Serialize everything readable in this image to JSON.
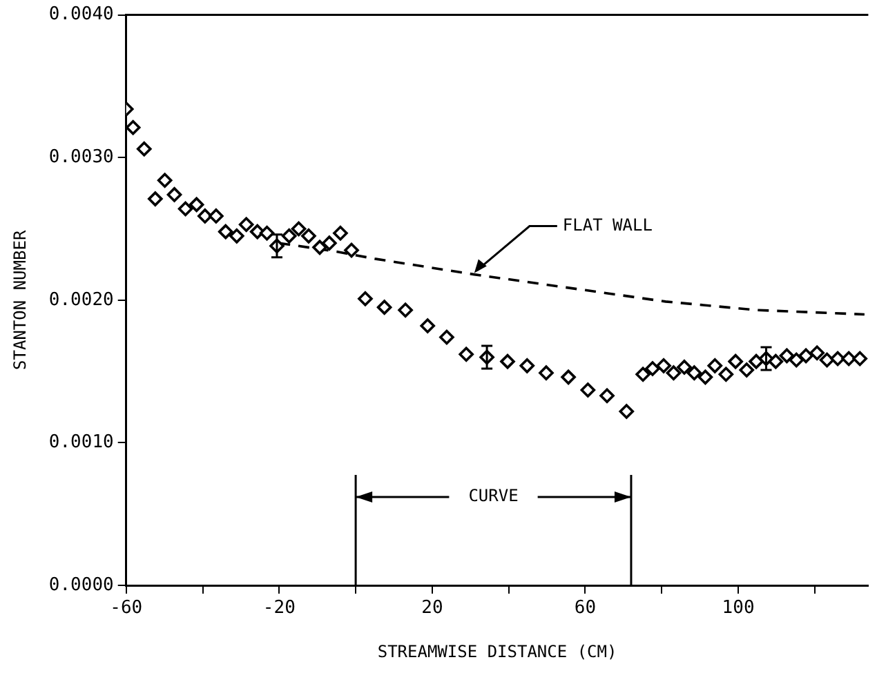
{
  "chart_data": {
    "type": "scatter",
    "xlabel": "STREAMWISE DISTANCE (CM)",
    "ylabel": "STANTON NUMBER",
    "xlim": [
      -60,
      134
    ],
    "ylim": [
      0,
      0.004
    ],
    "xticks": [
      -60,
      {
        "value": -40,
        "label": null
      },
      -20,
      {
        "value": 0,
        "label": null
      },
      20,
      {
        "value": 40,
        "label": null
      },
      60,
      {
        "value": 80,
        "label": null
      },
      100,
      {
        "value": 120,
        "label": null
      }
    ],
    "yticks": [
      {
        "value": 0,
        "label": "0.0000"
      },
      {
        "value": 0.001,
        "label": "0.0010"
      },
      {
        "value": 0.002,
        "label": "0.0020"
      },
      {
        "value": 0.003,
        "label": "0.0030"
      },
      {
        "value": 0.004,
        "label": "0.0040"
      }
    ],
    "grid": false,
    "legend": false,
    "series": [
      {
        "color": "#000000",
        "marker": "diamond",
        "x": [
          -60,
          -58.2,
          -55.3,
          -52.4,
          -49.9,
          -47.4,
          -44.5,
          -41.6,
          -39.4,
          -36.5,
          -34.0,
          -31.1,
          -28.6,
          -25.7,
          -23.2,
          -20.6,
          -17.4,
          -14.9,
          -12.3,
          -9.4,
          -6.9,
          -4.0,
          -1.1,
          2.5,
          7.5,
          13.0,
          18.8,
          23.8,
          28.9,
          34.3,
          39.7,
          44.8,
          49.8,
          55.6,
          60.7,
          65.7,
          70.8,
          75.1,
          77.6,
          80.5,
          83.1,
          85.9,
          88.5,
          91.4,
          93.9,
          96.8,
          99.3,
          102.2,
          104.7,
          107.3,
          109.8,
          112.7,
          115.2,
          117.7,
          120.6,
          123.2,
          126.0,
          128.9,
          131.8
        ],
        "values": [
          0.00334,
          0.00321,
          0.00306,
          0.00271,
          0.00284,
          0.00274,
          0.00264,
          0.00267,
          0.00259,
          0.00259,
          0.00248,
          0.00245,
          0.00253,
          0.00248,
          0.00247,
          0.00238,
          0.00245,
          0.0025,
          0.00245,
          0.00237,
          0.0024,
          0.00247,
          0.00235,
          0.00201,
          0.00195,
          0.00193,
          0.00182,
          0.00174,
          0.00162,
          0.0016,
          0.00157,
          0.00154,
          0.00149,
          0.00146,
          0.00137,
          0.00133,
          0.00122,
          0.00148,
          0.00152,
          0.00154,
          0.00149,
          0.00153,
          0.00149,
          0.00146,
          0.00154,
          0.00148,
          0.00157,
          0.00151,
          0.00157,
          0.00159,
          0.00157,
          0.00161,
          0.00158,
          0.00161,
          0.00163,
          0.00158,
          0.00159,
          0.00159,
          0.00159
        ],
        "errors": [
          null,
          null,
          null,
          null,
          null,
          null,
          null,
          null,
          null,
          null,
          null,
          null,
          null,
          null,
          null,
          8e-05,
          null,
          null,
          null,
          null,
          null,
          null,
          null,
          null,
          null,
          null,
          null,
          null,
          null,
          8e-05,
          null,
          null,
          null,
          null,
          null,
          null,
          null,
          null,
          null,
          null,
          null,
          null,
          null,
          null,
          null,
          null,
          null,
          null,
          null,
          8e-05,
          null,
          null,
          null,
          null,
          null,
          null,
          null,
          null,
          null
        ]
      },
      {
        "type": "line",
        "color": "#000000",
        "marker": "none",
        "line_style": "dashed",
        "x": [
          -20,
          -5,
          5,
          31,
          60,
          81,
          105,
          133
        ],
        "values": [
          0.0024,
          0.00234,
          0.00229,
          0.00218,
          0.00207,
          0.00199,
          0.00193,
          0.0019
        ]
      }
    ],
    "annotations": [
      {
        "text": "FLAT WALL",
        "x": 31,
        "y": 0.00218
      }
    ],
    "ref_lines": [
      {
        "axis": "x",
        "value": 0,
        "label": "CURVE"
      },
      {
        "axis": "x",
        "value": 72
      }
    ]
  }
}
